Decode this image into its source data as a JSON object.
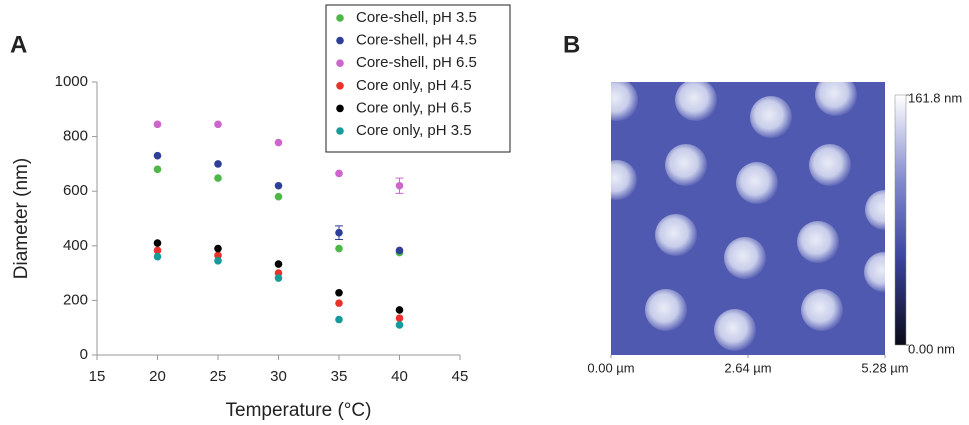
{
  "chart_data": [
    {
      "type": "scatter",
      "panel_label": "A",
      "x_label": "Temperature (°C)",
      "y_label": "Diameter (nm)",
      "x": [
        20,
        25,
        30,
        35,
        40
      ],
      "series": [
        {
          "name": "Core-shell, pH 3.5",
          "color": "#4db848",
          "values": [
            680,
            648,
            580,
            390,
            375
          ]
        },
        {
          "name": "Core-shell, pH 4.5",
          "color": "#2e3f99",
          "values": [
            730,
            700,
            620,
            448,
            383
          ],
          "errors": [
            null,
            null,
            null,
            25,
            null
          ]
        },
        {
          "name": "Core-shell, pH 6.5",
          "color": "#cc66cc",
          "values": [
            845,
            845,
            778,
            665,
            620
          ],
          "errors": [
            null,
            null,
            null,
            null,
            28
          ]
        },
        {
          "name": "Core only, pH 4.5",
          "color": "#e8322b",
          "values": [
            383,
            365,
            300,
            190,
            135
          ]
        },
        {
          "name": "Core only, pH 6.5",
          "color": "#000000",
          "values": [
            410,
            390,
            333,
            228,
            165
          ]
        },
        {
          "name": "Core only, pH 3.5",
          "color": "#169a9a",
          "values": [
            360,
            345,
            282,
            130,
            110
          ]
        }
      ],
      "xlim": [
        15,
        45
      ],
      "xticks": [
        15,
        20,
        25,
        30,
        35,
        40,
        45
      ],
      "ylim": [
        0,
        1000
      ],
      "yticks": [
        0,
        200,
        400,
        600,
        800,
        1000
      ],
      "legend": "upper right"
    },
    {
      "type": "image",
      "panel_label": "B",
      "xlim": [
        0,
        5.28
      ],
      "xticks": [
        {
          "value": 0,
          "label": "0.00 µm"
        },
        {
          "value": 2.64,
          "label": "2.64 µm"
        },
        {
          "value": 5.28,
          "label": "5.28 µm"
        }
      ],
      "colorbar_lim": [
        0,
        161.8
      ],
      "colorbar_ticks": [
        {
          "value": 0,
          "label": "0.00 nm"
        },
        {
          "value": 161.8,
          "label": "161.8 nm"
        }
      ]
    }
  ]
}
